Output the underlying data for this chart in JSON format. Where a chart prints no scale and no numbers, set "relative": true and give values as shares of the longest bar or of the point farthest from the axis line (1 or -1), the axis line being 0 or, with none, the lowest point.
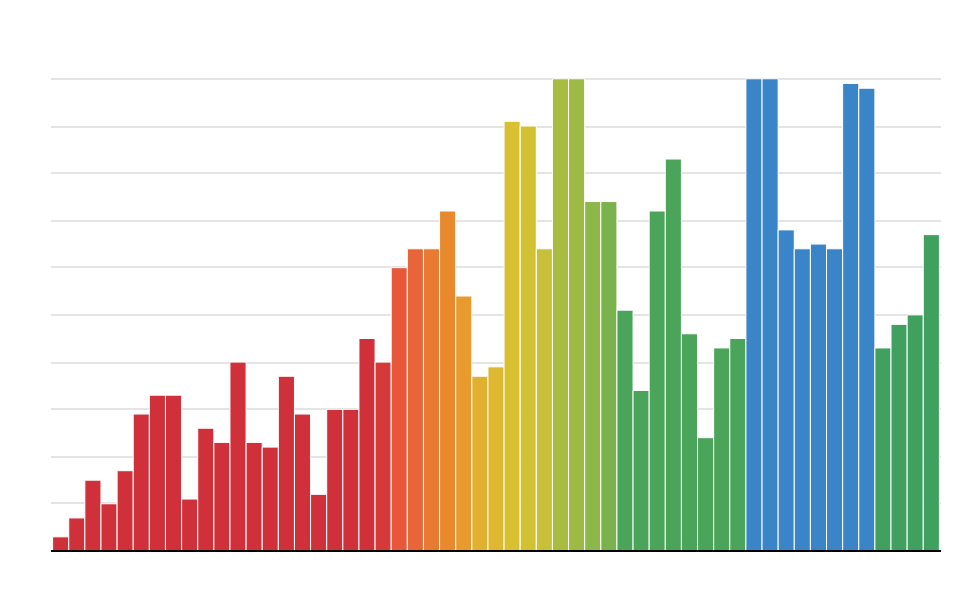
{
  "chart_data": {
    "type": "bar",
    "relative": true,
    "grid": "y",
    "categories": [
      null,
      null,
      null,
      null,
      null,
      null,
      null,
      null,
      null,
      null,
      null,
      null,
      null,
      null,
      null,
      null,
      null,
      null,
      null,
      null,
      null,
      null,
      null,
      null,
      null,
      null,
      null,
      null,
      null,
      null,
      null,
      null,
      null,
      null,
      null,
      null,
      null,
      null,
      null,
      null,
      null,
      null,
      null,
      null,
      null,
      null,
      null,
      null,
      null,
      null,
      null,
      null,
      null,
      null,
      null
    ],
    "values": [
      0.03,
      0.07,
      0.15,
      0.1,
      0.17,
      0.29,
      0.33,
      0.33,
      0.11,
      0.26,
      0.23,
      0.4,
      0.23,
      0.22,
      0.37,
      0.29,
      0.12,
      0.3,
      0.3,
      0.45,
      0.4,
      0.6,
      0.64,
      0.64,
      0.72,
      0.54,
      0.37,
      0.39,
      0.91,
      0.9,
      0.64,
      1.0,
      1.0,
      0.74,
      0.74,
      0.51,
      0.34,
      0.72,
      0.83,
      0.46,
      0.24,
      0.43,
      0.45,
      1.0,
      1.0,
      0.68,
      0.64,
      0.65,
      0.64,
      0.99,
      0.98,
      0.43,
      0.48,
      0.5,
      0.67
    ],
    "colors": [
      "#d0303a",
      "#d0303a",
      "#d0303a",
      "#d0303a",
      "#d0303a",
      "#d0303a",
      "#d0303a",
      "#d0303a",
      "#d0303a",
      "#d0303a",
      "#d0303a",
      "#d0303a",
      "#d0303a",
      "#d0303a",
      "#d0303a",
      "#d0303a",
      "#d0303a",
      "#d0303a",
      "#d0303a",
      "#d0303a",
      "#d63a38",
      "#e8573a",
      "#e8653a",
      "#e87a32",
      "#e8892e",
      "#e89a2e",
      "#e0b030",
      "#ddb830",
      "#d8c030",
      "#d2c232",
      "#c8c038",
      "#a8bc40",
      "#9cba44",
      "#8cb84a",
      "#7cb24e",
      "#4aa55a",
      "#4aa55a",
      "#4aa55a",
      "#4aa55a",
      "#4aa55a",
      "#4aa55a",
      "#4aa55a",
      "#4aa55a",
      "#3a85c8",
      "#3a85c8",
      "#3a85c8",
      "#3a85c8",
      "#3a85c8",
      "#3a85c8",
      "#3a85c8",
      "#3a85c8",
      "#3fa060",
      "#3fa060",
      "#3fa060",
      "#3fa060"
    ]
  }
}
